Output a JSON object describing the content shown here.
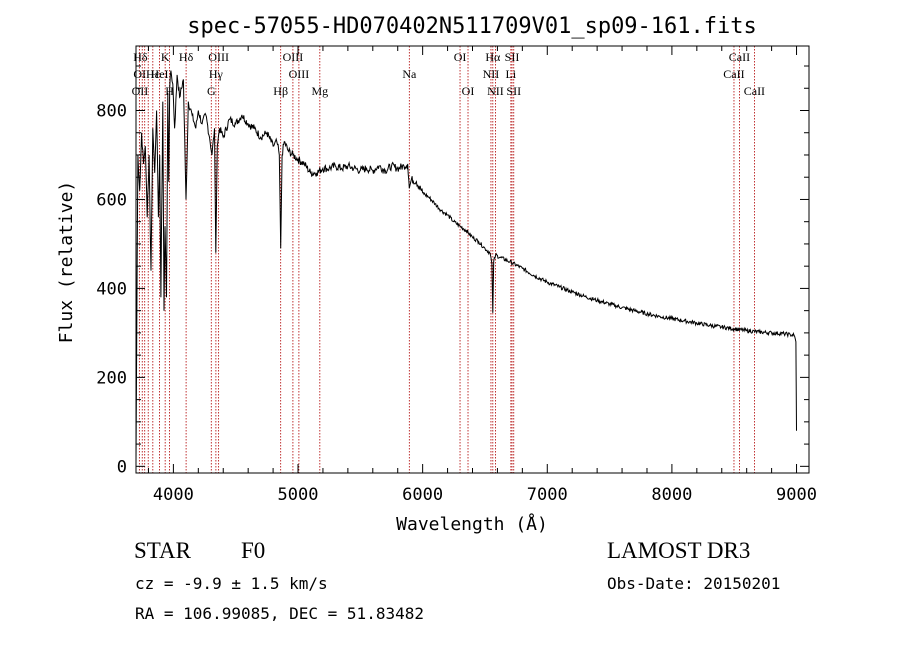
{
  "chart_data": {
    "type": "line",
    "title": "spec-57055-HD070402N511709V01_sp09-161.fits",
    "xlabel": "Wavelength (Å)",
    "ylabel": "Flux (relative)",
    "xlim": [
      3700,
      9100
    ],
    "ylim": [
      -15,
      945
    ],
    "xticks": [
      4000,
      5000,
      6000,
      7000,
      8000,
      9000
    ],
    "xtick_labels": [
      "4000",
      "5000",
      "6000",
      "7000",
      "8000",
      "9000"
    ],
    "yticks": [
      0,
      200,
      400,
      600,
      800
    ],
    "ytick_labels": [
      "0",
      "200",
      "400",
      "600",
      "800"
    ],
    "series": [
      {
        "name": "spectrum",
        "x": [
          3700,
          3715,
          3730,
          3745,
          3760,
          3775,
          3790,
          3805,
          3820,
          3835,
          3850,
          3865,
          3880,
          3890,
          3900,
          3915,
          3925,
          3933,
          3945,
          3955,
          3962,
          3970,
          3980,
          3995,
          4010,
          4030,
          4050,
          4080,
          4101,
          4120,
          4150,
          4180,
          4200,
          4230,
          4260,
          4290,
          4310,
          4330,
          4340,
          4352,
          4370,
          4400,
          4450,
          4500,
          4550,
          4600,
          4650,
          4700,
          4750,
          4800,
          4830,
          4850,
          4861,
          4872,
          4890,
          4920,
          4960,
          5000,
          5050,
          5100,
          5150,
          5200,
          5250,
          5300,
          5350,
          5400,
          5450,
          5500,
          5550,
          5600,
          5650,
          5700,
          5750,
          5800,
          5850,
          5880,
          5893,
          5910,
          5950,
          6000,
          6050,
          6100,
          6150,
          6200,
          6250,
          6300,
          6350,
          6400,
          6450,
          6500,
          6540,
          6556,
          6563,
          6570,
          6585,
          6620,
          6700,
          6800,
          6900,
          7000,
          7100,
          7200,
          7300,
          7400,
          7500,
          7600,
          7700,
          7800,
          7900,
          8000,
          8100,
          8200,
          8300,
          8400,
          8500,
          8600,
          8700,
          8800,
          8900,
          8950,
          8980,
          8995,
          9000
        ],
        "y": [
          10,
          700,
          620,
          750,
          680,
          720,
          560,
          700,
          440,
          760,
          660,
          800,
          560,
          700,
          380,
          820,
          350,
          540,
          380,
          840,
          640,
          850,
          890,
          860,
          760,
          880,
          830,
          870,
          600,
          820,
          790,
          760,
          800,
          770,
          790,
          740,
          700,
          760,
          480,
          720,
          760,
          740,
          780,
          770,
          790,
          770,
          760,
          740,
          750,
          720,
          730,
          700,
          490,
          700,
          730,
          710,
          700,
          690,
          680,
          660,
          660,
          670,
          670,
          675,
          670,
          675,
          670,
          665,
          670,
          665,
          675,
          665,
          675,
          670,
          675,
          680,
          625,
          645,
          640,
          615,
          605,
          590,
          575,
          565,
          550,
          540,
          530,
          515,
          505,
          490,
          480,
          455,
          345,
          460,
          475,
          470,
          460,
          445,
          428,
          414,
          403,
          392,
          382,
          373,
          365,
          357,
          350,
          343,
          337,
          332,
          327,
          322,
          317,
          313,
          309,
          305,
          302,
          300,
          298,
          296,
          295,
          280,
          80
        ]
      }
    ],
    "line_labels": [
      {
        "label": "Hδ",
        "row": 1,
        "wavelength": 3735
      },
      {
        "label": "OI",
        "row": 2,
        "wavelength": 3730
      },
      {
        "label": "OII",
        "row": 3,
        "wavelength": 3732
      },
      {
        "label": "Hε",
        "row": 2,
        "wavelength": 3835
      },
      {
        "label": "HeI",
        "row": 2,
        "wavelength": 3889
      },
      {
        "label": "K",
        "row": 1,
        "wavelength": 3934
      },
      {
        "label": "H",
        "row": 3,
        "wavelength": 3969
      },
      {
        "label": "Hδ",
        "row": 1,
        "wavelength": 4102
      },
      {
        "label": "OIII",
        "row": 1,
        "wavelength": 4363
      },
      {
        "label": "Hγ",
        "row": 2,
        "wavelength": 4341
      },
      {
        "label": "G",
        "row": 3,
        "wavelength": 4304
      },
      {
        "label": "Hβ",
        "row": 3,
        "wavelength": 4861
      },
      {
        "label": "OIII",
        "row": 1,
        "wavelength": 4959
      },
      {
        "label": "OIII",
        "row": 2,
        "wavelength": 5007
      },
      {
        "label": "Mg",
        "row": 3,
        "wavelength": 5175
      },
      {
        "label": "Na",
        "row": 2,
        "wavelength": 5893
      },
      {
        "label": "OI",
        "row": 1,
        "wavelength": 6300
      },
      {
        "label": "OI",
        "row": 3,
        "wavelength": 6364
      },
      {
        "label": "Hα",
        "row": 1,
        "wavelength": 6563
      },
      {
        "label": "NII",
        "row": 2,
        "wavelength": 6548
      },
      {
        "label": "NII",
        "row": 3,
        "wavelength": 6584
      },
      {
        "label": "SII",
        "row": 1,
        "wavelength": 6717
      },
      {
        "label": "Li",
        "row": 2,
        "wavelength": 6708
      },
      {
        "label": "SII",
        "row": 3,
        "wavelength": 6731
      },
      {
        "label": "CaII",
        "row": 1,
        "wavelength": 8542
      },
      {
        "label": "CaII",
        "row": 2,
        "wavelength": 8498
      },
      {
        "label": "CaII",
        "row": 3,
        "wavelength": 8662
      }
    ],
    "marker_lines": [
      3727,
      3750,
      3770,
      3798,
      3835,
      3889,
      3934,
      3969,
      4102,
      4304,
      4341,
      4363,
      4861,
      4959,
      5007,
      5175,
      5893,
      6300,
      6364,
      6548,
      6563,
      6584,
      6708,
      6717,
      6731,
      8498,
      8542,
      8662
    ]
  },
  "info": {
    "object_class": "STAR",
    "subclass": "F0",
    "survey": "LAMOST DR3",
    "redshift": "cz = -9.9 ± 1.5 km/s",
    "obs_date": "Obs-Date: 20150201",
    "coords": "RA = 106.99085, DEC =  51.83482"
  },
  "colors": {
    "axes": "#000000",
    "spectrum": "#000000",
    "marker_lines": "#b00000"
  }
}
